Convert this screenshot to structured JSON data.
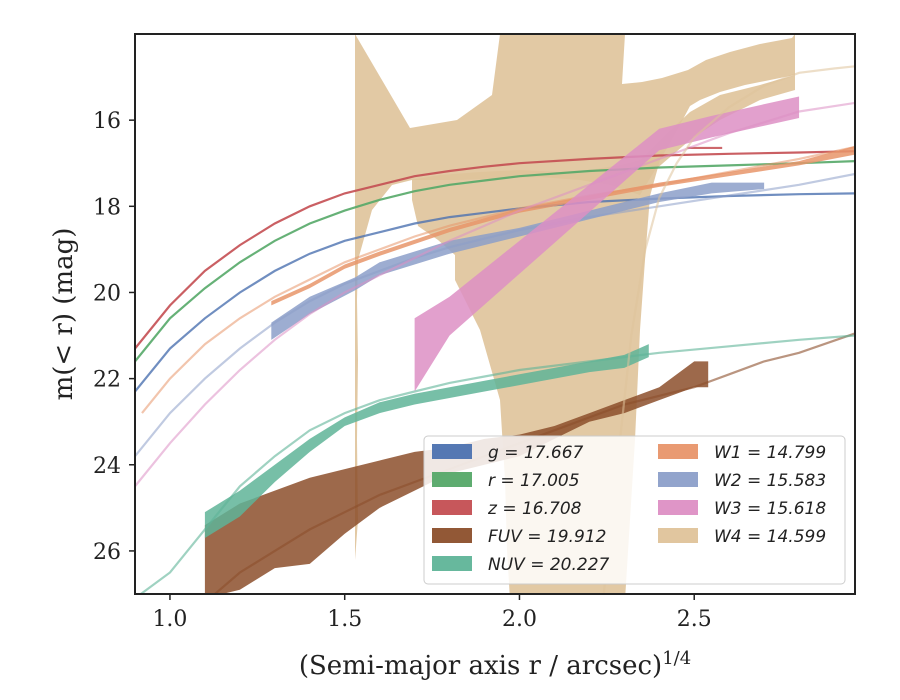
{
  "chart_data": {
    "type": "area",
    "xlabel": "(Semi-major axis r / arcsec)",
    "xlabel_exponent": "1/4",
    "ylabel": "m(< r) (mag)",
    "xlim": [
      0.9,
      2.96
    ],
    "ylim": [
      27.0,
      14.0
    ],
    "y_inverted": true,
    "x_ticks": [
      1.0,
      1.5,
      2.0,
      2.5
    ],
    "x_tick_labels": [
      "1.0",
      "1.5",
      "2.0",
      "2.5"
    ],
    "y_ticks": [
      16,
      18,
      20,
      22,
      24,
      26
    ],
    "y_tick_labels": [
      "16",
      "18",
      "20",
      "22",
      "24",
      "26"
    ],
    "grid": false,
    "legend_position": "lower-right",
    "series": [
      {
        "name": "g = 17.667",
        "band": "g",
        "value": "17.667",
        "color": "#4c72b0",
        "curve_x": [
          0.9,
          1.0,
          1.1,
          1.2,
          1.3,
          1.4,
          1.5,
          1.6,
          1.7,
          1.8,
          1.9,
          2.0,
          2.2,
          2.4,
          2.6,
          2.8,
          2.96
        ],
        "curve_y": [
          22.3,
          21.3,
          20.6,
          20.0,
          19.5,
          19.1,
          18.8,
          18.6,
          18.4,
          18.25,
          18.15,
          18.05,
          17.9,
          17.82,
          17.76,
          17.72,
          17.7
        ],
        "curve_alpha": 0.8,
        "band_x": [],
        "band_low": [],
        "band_high": []
      },
      {
        "name": "r = 17.005",
        "band": "r",
        "value": "17.005",
        "color": "#55a868",
        "curve_x": [
          0.9,
          1.0,
          1.1,
          1.2,
          1.3,
          1.4,
          1.5,
          1.6,
          1.7,
          1.8,
          1.9,
          2.0,
          2.2,
          2.4,
          2.6,
          2.8,
          2.96
        ],
        "curve_y": [
          21.6,
          20.6,
          19.9,
          19.3,
          18.8,
          18.4,
          18.1,
          17.85,
          17.65,
          17.5,
          17.4,
          17.3,
          17.18,
          17.1,
          17.05,
          17.0,
          16.95
        ],
        "curve_alpha": 0.9,
        "band_x": [],
        "band_low": [],
        "band_high": []
      },
      {
        "name": "z = 16.708",
        "band": "z",
        "value": "16.708",
        "color": "#c44e52",
        "curve_x": [
          0.9,
          1.0,
          1.1,
          1.2,
          1.3,
          1.4,
          1.5,
          1.6,
          1.7,
          1.8,
          1.9,
          2.0,
          2.2,
          2.4,
          2.6,
          2.8,
          2.96
        ],
        "curve_y": [
          21.3,
          20.3,
          19.5,
          18.9,
          18.4,
          18.0,
          17.7,
          17.5,
          17.3,
          17.18,
          17.08,
          17.0,
          16.9,
          16.82,
          16.78,
          16.75,
          16.72
        ],
        "curve_alpha": 0.9,
        "band_x": [
          2.48,
          2.58
        ],
        "band_low": [
          16.62,
          16.62
        ],
        "band_high": [
          16.67,
          16.67
        ]
      },
      {
        "name": "FUV = 19.912",
        "band": "FUV",
        "value": "19.912",
        "color": "#8c4f2b",
        "curve_x": [
          1.1,
          1.2,
          1.3,
          1.4,
          1.5,
          1.6,
          1.7,
          1.8,
          1.9,
          2.0,
          2.1,
          2.2,
          2.3,
          2.4,
          2.5,
          2.6,
          2.7,
          2.8,
          2.96
        ],
        "curve_y": [
          27.2,
          26.5,
          26.0,
          25.5,
          25.1,
          24.7,
          24.4,
          24.1,
          23.8,
          23.5,
          23.2,
          22.9,
          22.6,
          22.4,
          22.2,
          21.9,
          21.6,
          21.4,
          20.95
        ],
        "curve_alpha": 0.6,
        "band_x": [
          1.1,
          1.2,
          1.3,
          1.4,
          1.5,
          1.6,
          1.7,
          1.8,
          1.9,
          2.0,
          2.1,
          2.2,
          2.3,
          2.4,
          2.5,
          2.54
        ],
        "band_low": [
          27.1,
          26.9,
          26.4,
          26.3,
          25.6,
          25.0,
          24.6,
          24.2,
          24.0,
          23.8,
          23.4,
          23.0,
          22.8,
          22.5,
          22.2,
          22.2
        ],
        "band_high": [
          25.4,
          24.9,
          24.6,
          24.3,
          24.1,
          23.9,
          23.7,
          23.6,
          23.4,
          23.3,
          23.1,
          22.8,
          22.5,
          22.2,
          21.6,
          21.6
        ]
      },
      {
        "name": "NUV = 20.227",
        "band": "NUV",
        "value": "20.227",
        "color": "#5fb498",
        "curve_x": [
          0.9,
          1.0,
          1.1,
          1.2,
          1.3,
          1.4,
          1.5,
          1.6,
          1.7,
          1.8,
          1.9,
          2.0,
          2.2,
          2.4,
          2.6,
          2.8,
          2.96
        ],
        "curve_y": [
          27.1,
          26.5,
          25.5,
          24.5,
          23.8,
          23.2,
          22.8,
          22.5,
          22.3,
          22.1,
          21.95,
          21.8,
          21.6,
          21.4,
          21.25,
          21.1,
          21.0
        ],
        "curve_alpha": 0.6,
        "band_x": [
          1.1,
          1.2,
          1.3,
          1.4,
          1.5,
          1.6,
          1.7,
          1.8,
          1.9,
          2.0,
          2.1,
          2.2,
          2.3,
          2.37
        ],
        "band_low": [
          25.7,
          25.2,
          24.4,
          23.7,
          23.1,
          22.8,
          22.6,
          22.45,
          22.3,
          22.15,
          22.0,
          21.85,
          21.75,
          21.5
        ],
        "band_high": [
          25.1,
          24.6,
          24.0,
          23.4,
          22.9,
          22.55,
          22.35,
          22.2,
          22.05,
          21.9,
          21.75,
          21.6,
          21.45,
          21.2
        ]
      },
      {
        "name": "W1 = 14.799",
        "band": "W1",
        "value": "14.799",
        "color": "#e8956a",
        "curve_x": [
          0.92,
          1.0,
          1.1,
          1.2,
          1.3,
          1.4,
          1.5,
          1.6,
          1.7,
          1.8,
          1.9,
          2.0,
          2.2,
          2.4,
          2.6,
          2.8,
          2.96
        ],
        "curve_y": [
          22.8,
          22.0,
          21.2,
          20.6,
          20.1,
          19.7,
          19.3,
          19.0,
          18.7,
          18.45,
          18.25,
          18.05,
          17.75,
          17.5,
          17.2,
          16.9,
          16.62
        ],
        "curve_alpha": 0.55,
        "band_x": [
          1.29,
          1.4,
          1.5,
          1.6,
          1.8,
          2.0,
          2.2,
          2.4,
          2.6,
          2.8,
          2.96
        ],
        "band_low": [
          20.3,
          19.9,
          19.45,
          19.15,
          18.6,
          18.15,
          17.85,
          17.55,
          17.3,
          17.05,
          16.8
        ],
        "band_high": [
          20.2,
          19.8,
          19.35,
          19.05,
          18.5,
          18.05,
          17.75,
          17.45,
          17.2,
          16.95,
          16.6
        ]
      },
      {
        "name": "W2 = 15.583",
        "band": "W2",
        "value": "15.583",
        "color": "#8c9fc9",
        "curve_x": [
          0.9,
          1.0,
          1.1,
          1.2,
          1.3,
          1.4,
          1.5,
          1.6,
          1.7,
          1.8,
          1.9,
          2.0,
          2.2,
          2.4,
          2.6,
          2.8,
          2.96
        ],
        "curve_y": [
          23.8,
          22.8,
          22.0,
          21.3,
          20.7,
          20.2,
          19.8,
          19.5,
          19.2,
          18.95,
          18.75,
          18.55,
          18.25,
          18.0,
          17.75,
          17.5,
          17.25
        ],
        "curve_alpha": 0.55,
        "band_x": [
          1.29,
          1.4,
          1.53,
          1.6,
          1.8,
          2.0,
          2.2,
          2.4,
          2.55,
          2.7
        ],
        "band_low": [
          21.1,
          20.5,
          19.95,
          19.6,
          19.1,
          18.7,
          18.3,
          17.9,
          17.7,
          17.6
        ],
        "band_high": [
          20.7,
          20.1,
          19.65,
          19.3,
          18.8,
          18.5,
          18.1,
          17.7,
          17.45,
          17.45
        ]
      },
      {
        "name": "W3 = 15.618",
        "band": "W3",
        "value": "15.618",
        "color": "#dd8fc4",
        "curve_x": [
          0.9,
          1.0,
          1.1,
          1.2,
          1.3,
          1.4,
          1.5,
          1.6,
          1.7,
          1.8,
          1.9,
          2.0,
          2.2,
          2.4,
          2.6,
          2.8,
          2.96
        ],
        "curve_y": [
          24.5,
          23.5,
          22.6,
          21.8,
          21.1,
          20.5,
          20.0,
          19.6,
          19.2,
          18.8,
          18.45,
          18.1,
          17.5,
          16.9,
          16.3,
          15.8,
          15.6
        ],
        "curve_alpha": 0.55,
        "band_x": [
          1.7,
          1.8,
          2.4,
          2.55,
          2.8
        ],
        "band_low": [
          22.3,
          21.0,
          16.7,
          16.4,
          15.95
        ],
        "band_high": [
          20.6,
          20.1,
          16.2,
          15.9,
          15.45
        ]
      },
      {
        "name": "W4 = 14.599",
        "band": "W4",
        "value": "14.599",
        "color": "#dfc39a",
        "curve_x": [
          2.24,
          2.28,
          2.32,
          2.36,
          2.4,
          2.45,
          2.5,
          2.6,
          2.7,
          2.8,
          2.9,
          2.96
        ],
        "curve_y": [
          27.1,
          24.0,
          21.0,
          19.0,
          17.8,
          17.0,
          16.4,
          15.7,
          15.2,
          14.9,
          14.8,
          14.75
        ],
        "curve_alpha": 0.55,
        "band_x": [],
        "band_low": [],
        "band_high": []
      }
    ]
  }
}
